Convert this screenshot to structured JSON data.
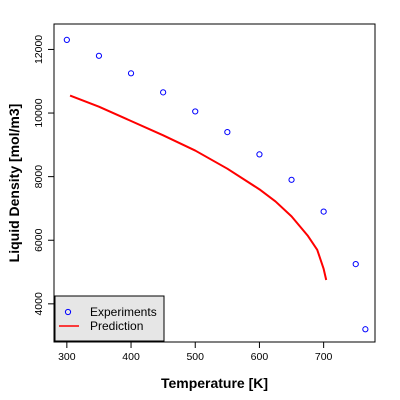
{
  "chart_data": {
    "type": "scatter",
    "title": "",
    "xlabel": "Temperature [K]",
    "ylabel": "Liquid Density [mol/m3]",
    "xlim": [
      280,
      780
    ],
    "ylim": [
      2800,
      12800
    ],
    "x_ticks": [
      300,
      400,
      500,
      600,
      700
    ],
    "x_tick_labels": [
      "300",
      "400",
      "500",
      "600",
      "700"
    ],
    "y_ticks": [
      4000,
      6000,
      8000,
      10000,
      12000
    ],
    "y_tick_labels": [
      "4000",
      "6000",
      "8000",
      "10000",
      "12000"
    ],
    "grid": false,
    "legend_position": "bottom-left",
    "series": [
      {
        "name": "Experiments",
        "type": "scatter",
        "marker": "o",
        "color": "#0000ff",
        "x": [
          300,
          350,
          400,
          450,
          500,
          550,
          600,
          650,
          700,
          750,
          765
        ],
        "y": [
          12300,
          11800,
          11250,
          10650,
          10050,
          9400,
          8700,
          7900,
          6900,
          5250,
          3200
        ]
      },
      {
        "name": "Prediction",
        "type": "line",
        "color": "#ff0000",
        "x": [
          305,
          350,
          400,
          450,
          500,
          550,
          600,
          625,
          650,
          675,
          690,
          700,
          704
        ],
        "y": [
          10550,
          10200,
          9750,
          9300,
          8820,
          8250,
          7600,
          7220,
          6750,
          6150,
          5700,
          5100,
          4750
        ]
      }
    ]
  }
}
